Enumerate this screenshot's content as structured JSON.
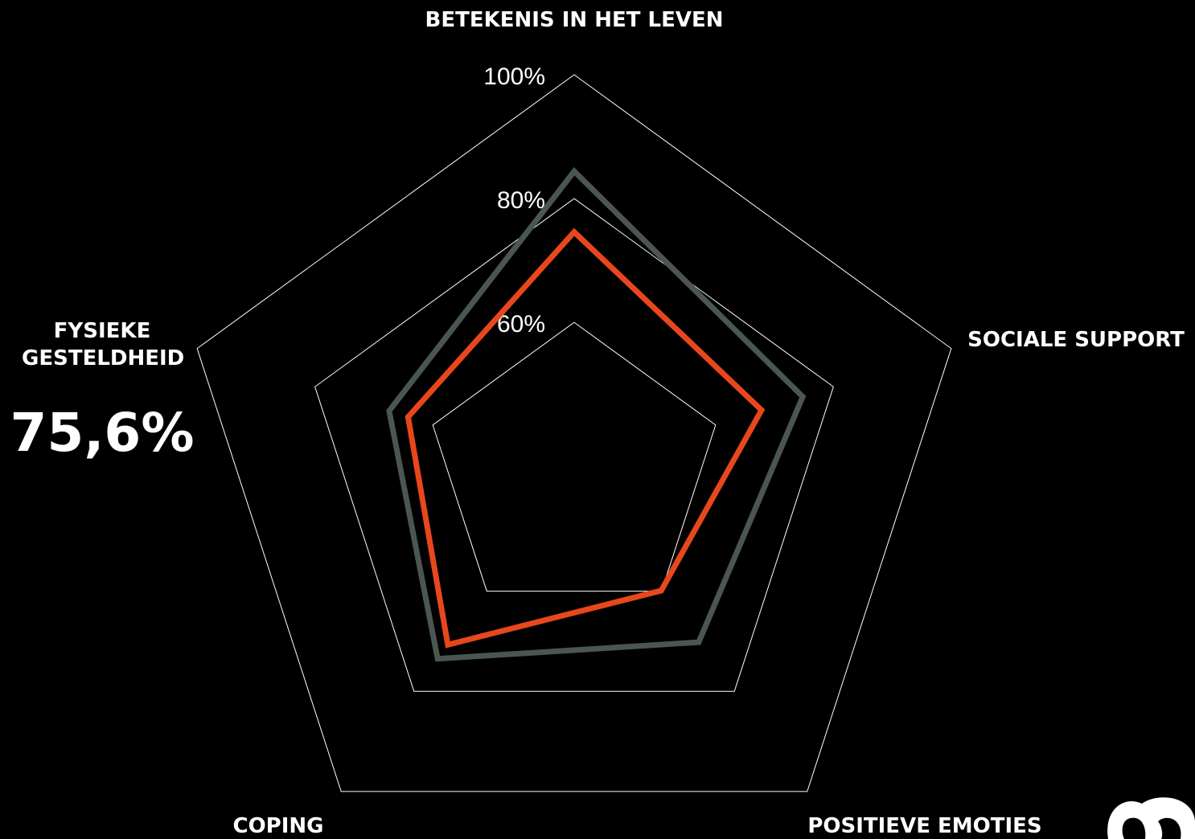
{
  "chart_data": {
    "type": "radar",
    "categories": [
      "BETEKENIS IN HET LEVEN",
      "SOCIALE SUPPORT",
      "POSITIEVE EMOTIES",
      "COPING",
      "FYSIEKE GESTELDHEID"
    ],
    "series": [
      {
        "color": "#4a5651",
        "values": [
          84.4,
          74.8,
          70.2,
          73.5,
          67.4
        ]
      },
      {
        "color": "#e8471c",
        "values": [
          74.6,
          67.8,
          59.9,
          70.7,
          64.2
        ]
      }
    ],
    "ylim": [
      36,
      100
    ],
    "yticks": [
      {
        "value": 60,
        "label": "60%"
      },
      {
        "value": 80,
        "label": "80%"
      },
      {
        "value": 100,
        "label": "100%"
      }
    ],
    "grid": true,
    "annotation": "75,6%"
  }
}
